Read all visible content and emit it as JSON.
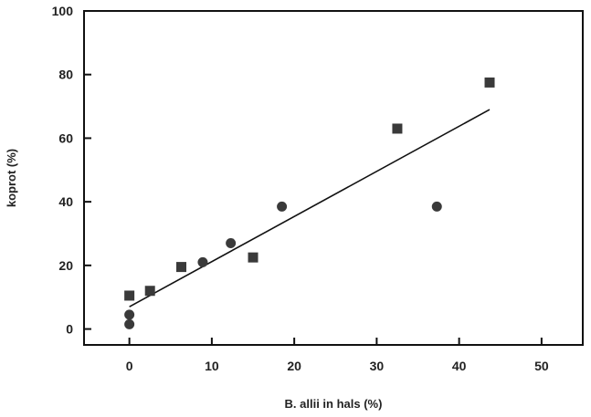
{
  "chart_data": {
    "type": "scatter",
    "xlabel": "B. allii in hals (%)",
    "ylabel": "koprot (%)",
    "xlim": [
      -5.5,
      55
    ],
    "ylim": [
      -5,
      100
    ],
    "x_ticks": [
      0,
      10,
      20,
      30,
      40,
      50
    ],
    "y_ticks": [
      0,
      20,
      40,
      60,
      80,
      100
    ],
    "grid": false,
    "colors": {
      "marker": "#3a3a3a",
      "axis": "#111111"
    },
    "series": [
      {
        "marker": "square",
        "points": [
          {
            "x": 0,
            "y": 10.5
          },
          {
            "x": 2.5,
            "y": 12
          },
          {
            "x": 6.3,
            "y": 19.5
          },
          {
            "x": 15,
            "y": 22.5
          },
          {
            "x": 32.5,
            "y": 63
          },
          {
            "x": 43.7,
            "y": 77.5
          }
        ]
      },
      {
        "marker": "circle",
        "points": [
          {
            "x": 0,
            "y": 1.5
          },
          {
            "x": 0,
            "y": 4.5
          },
          {
            "x": 8.9,
            "y": 21
          },
          {
            "x": 12.3,
            "y": 27
          },
          {
            "x": 18.5,
            "y": 38.5
          },
          {
            "x": 37.3,
            "y": 38.5
          }
        ]
      }
    ],
    "regression_line": {
      "x": [
        0,
        43.7
      ],
      "y": [
        7,
        69
      ]
    }
  }
}
